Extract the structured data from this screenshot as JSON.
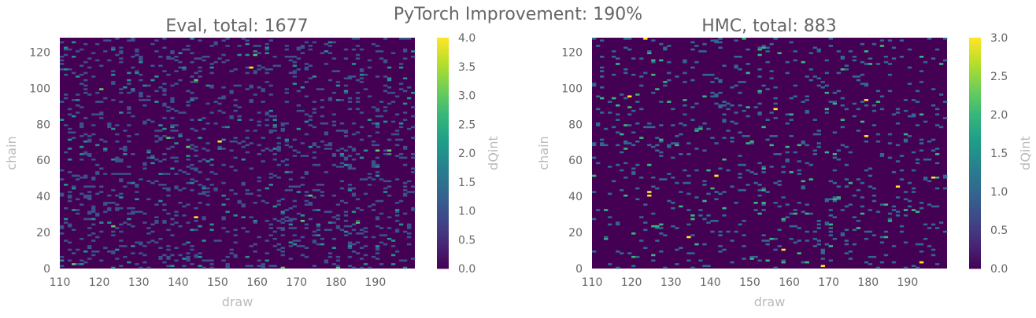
{
  "suptitle": "PyTorch Improvement: 190%",
  "chart_data": [
    {
      "type": "heatmap",
      "title": "Eval, total: 1677",
      "xlabel": "draw",
      "ylabel": "chain",
      "colorbar_label": "dQint",
      "colormap": "viridis",
      "x_range": [
        110,
        199
      ],
      "y_range": [
        0,
        127
      ],
      "x_ticks": [
        "110",
        "120",
        "130",
        "140",
        "150",
        "160",
        "170",
        "180",
        "190"
      ],
      "y_ticks": [
        "0",
        "20",
        "40",
        "60",
        "80",
        "100",
        "120"
      ],
      "color_range": [
        0,
        4
      ],
      "colorbar_ticks": [
        "0.0",
        "0.5",
        "1.0",
        "1.5",
        "2.0",
        "2.5",
        "3.0",
        "3.5",
        "4.0"
      ],
      "total": 1677,
      "cell_density": 0.12,
      "seed": 17
    },
    {
      "type": "heatmap",
      "title": "HMC, total: 883",
      "xlabel": "draw",
      "ylabel": "chain",
      "colorbar_label": "dQint",
      "colormap": "viridis",
      "x_range": [
        110,
        199
      ],
      "y_range": [
        0,
        127
      ],
      "x_ticks": [
        "110",
        "120",
        "130",
        "140",
        "150",
        "160",
        "170",
        "180",
        "190"
      ],
      "y_ticks": [
        "0",
        "20",
        "40",
        "60",
        "80",
        "100",
        "120"
      ],
      "color_range": [
        0,
        3
      ],
      "colorbar_ticks": [
        "0.0",
        "0.5",
        "1.0",
        "1.5",
        "2.0",
        "2.5",
        "3.0"
      ],
      "total": 883,
      "cell_density": 0.07,
      "seed": 41
    }
  ]
}
